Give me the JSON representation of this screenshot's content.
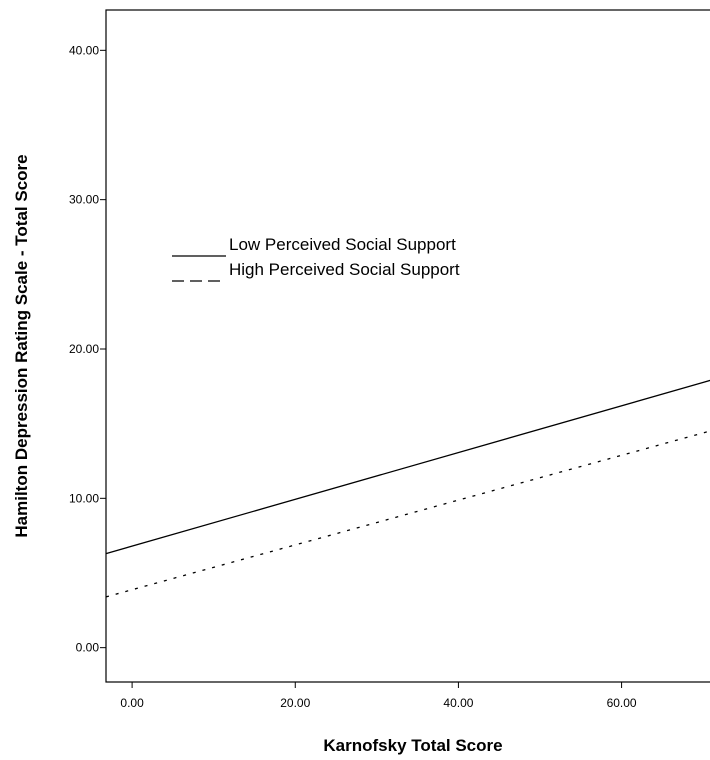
{
  "chart_data": {
    "type": "line",
    "title": "",
    "xlabel": "Karnofsky Total Score",
    "ylabel": "Hamilton Depression Rating Scale - Total Score",
    "xlim": [
      -3.2,
      72.8
    ],
    "ylim": [
      -2.3,
      42.7
    ],
    "x_ticks": [
      {
        "value": 0,
        "label": "0.00"
      },
      {
        "value": 20,
        "label": "20.00"
      },
      {
        "value": 40,
        "label": "40.00"
      },
      {
        "value": 60,
        "label": "60.00"
      }
    ],
    "y_ticks": [
      {
        "value": 0,
        "label": "0.00"
      },
      {
        "value": 10,
        "label": "10.00"
      },
      {
        "value": 20,
        "label": "20.00"
      },
      {
        "value": 30,
        "label": "30.00"
      },
      {
        "value": 40,
        "label": "40.00"
      }
    ],
    "grid": false,
    "legend_position": "upper-left",
    "series": [
      {
        "name": "Low Perceived Social Support",
        "style": "solid",
        "color": "#000000",
        "x": [
          -3.2,
          72.8
        ],
        "y": [
          6.3,
          18.2
        ]
      },
      {
        "name": "High Perceived Social Support",
        "style": "dashed",
        "color": "#000000",
        "x": [
          -3.2,
          72.8
        ],
        "y": [
          3.4,
          14.8
        ]
      }
    ]
  }
}
